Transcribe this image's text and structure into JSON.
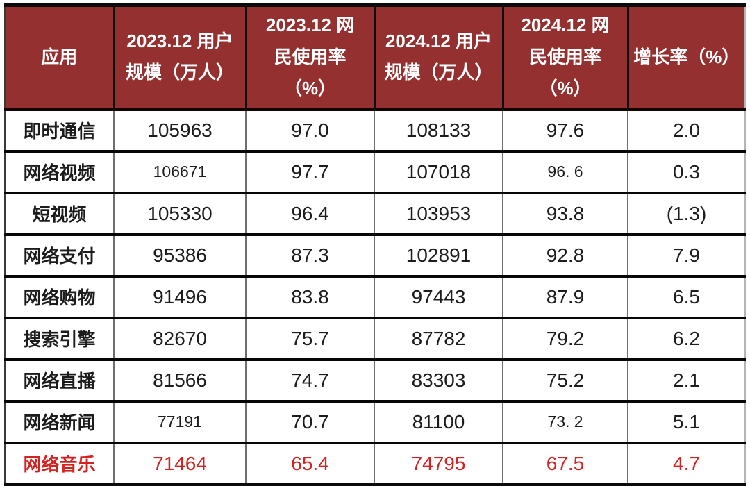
{
  "page": {
    "background": "#ffffff"
  },
  "table": {
    "description": "Internet application user scale and usage rate comparison 2023.12 vs 2024.12",
    "header_bg": "#943030",
    "header_text_color": "#ffffff",
    "highlight_color": "#d42220",
    "body_text_color": "#1c1c1c",
    "columns": [
      {
        "label": "应用"
      },
      {
        "label": "2023.12 用户\n规模（万人）"
      },
      {
        "label": "2023.12 网\n民使用率\n（%）"
      },
      {
        "label": "2024.12 用户\n规模（万人）"
      },
      {
        "label": "2024.12 网\n民使用率\n（%）"
      },
      {
        "label": "增长率（%）"
      }
    ],
    "rows": [
      {
        "app": "即时通信",
        "scale_2023": "105963",
        "rate_2023": "97.0",
        "scale_2024": "108133",
        "rate_2024": "97.6",
        "growth": "2.0"
      },
      {
        "app": "网络视频",
        "scale_2023": "106671",
        "rate_2023": "97.7",
        "scale_2024": "107018",
        "rate_2024": "96. 6",
        "growth": "0.3",
        "small_cells": [
          "scale_2023",
          "rate_2024"
        ]
      },
      {
        "app": "短视频",
        "scale_2023": "105330",
        "rate_2023": "96.4",
        "scale_2024": "103953",
        "rate_2024": "93.8",
        "growth": "(1.3)"
      },
      {
        "app": "网络支付",
        "scale_2023": "95386",
        "rate_2023": "87.3",
        "scale_2024": "102891",
        "rate_2024": "92.8",
        "growth": "7.9"
      },
      {
        "app": "网络购物",
        "scale_2023": "91496",
        "rate_2023": "83.8",
        "scale_2024": "97443",
        "rate_2024": "87.9",
        "growth": "6.5"
      },
      {
        "app": "搜索引擎",
        "scale_2023": "82670",
        "rate_2023": "75.7",
        "scale_2024": "87782",
        "rate_2024": "79.2",
        "growth": "6.2"
      },
      {
        "app": "网络直播",
        "scale_2023": "81566",
        "rate_2023": "74.7",
        "scale_2024": "83303",
        "rate_2024": "75.2",
        "growth": "2.1"
      },
      {
        "app": "网络新闻",
        "scale_2023": "77191",
        "rate_2023": "70.7",
        "scale_2024": "81100",
        "rate_2024": "73. 2",
        "growth": "5.1",
        "small_cells": [
          "scale_2023",
          "rate_2024"
        ]
      },
      {
        "app": "网络音乐",
        "scale_2023": "71464",
        "rate_2023": "65.4",
        "scale_2024": "74795",
        "rate_2024": "67.5",
        "growth": "4.7",
        "highlight": true
      }
    ]
  }
}
